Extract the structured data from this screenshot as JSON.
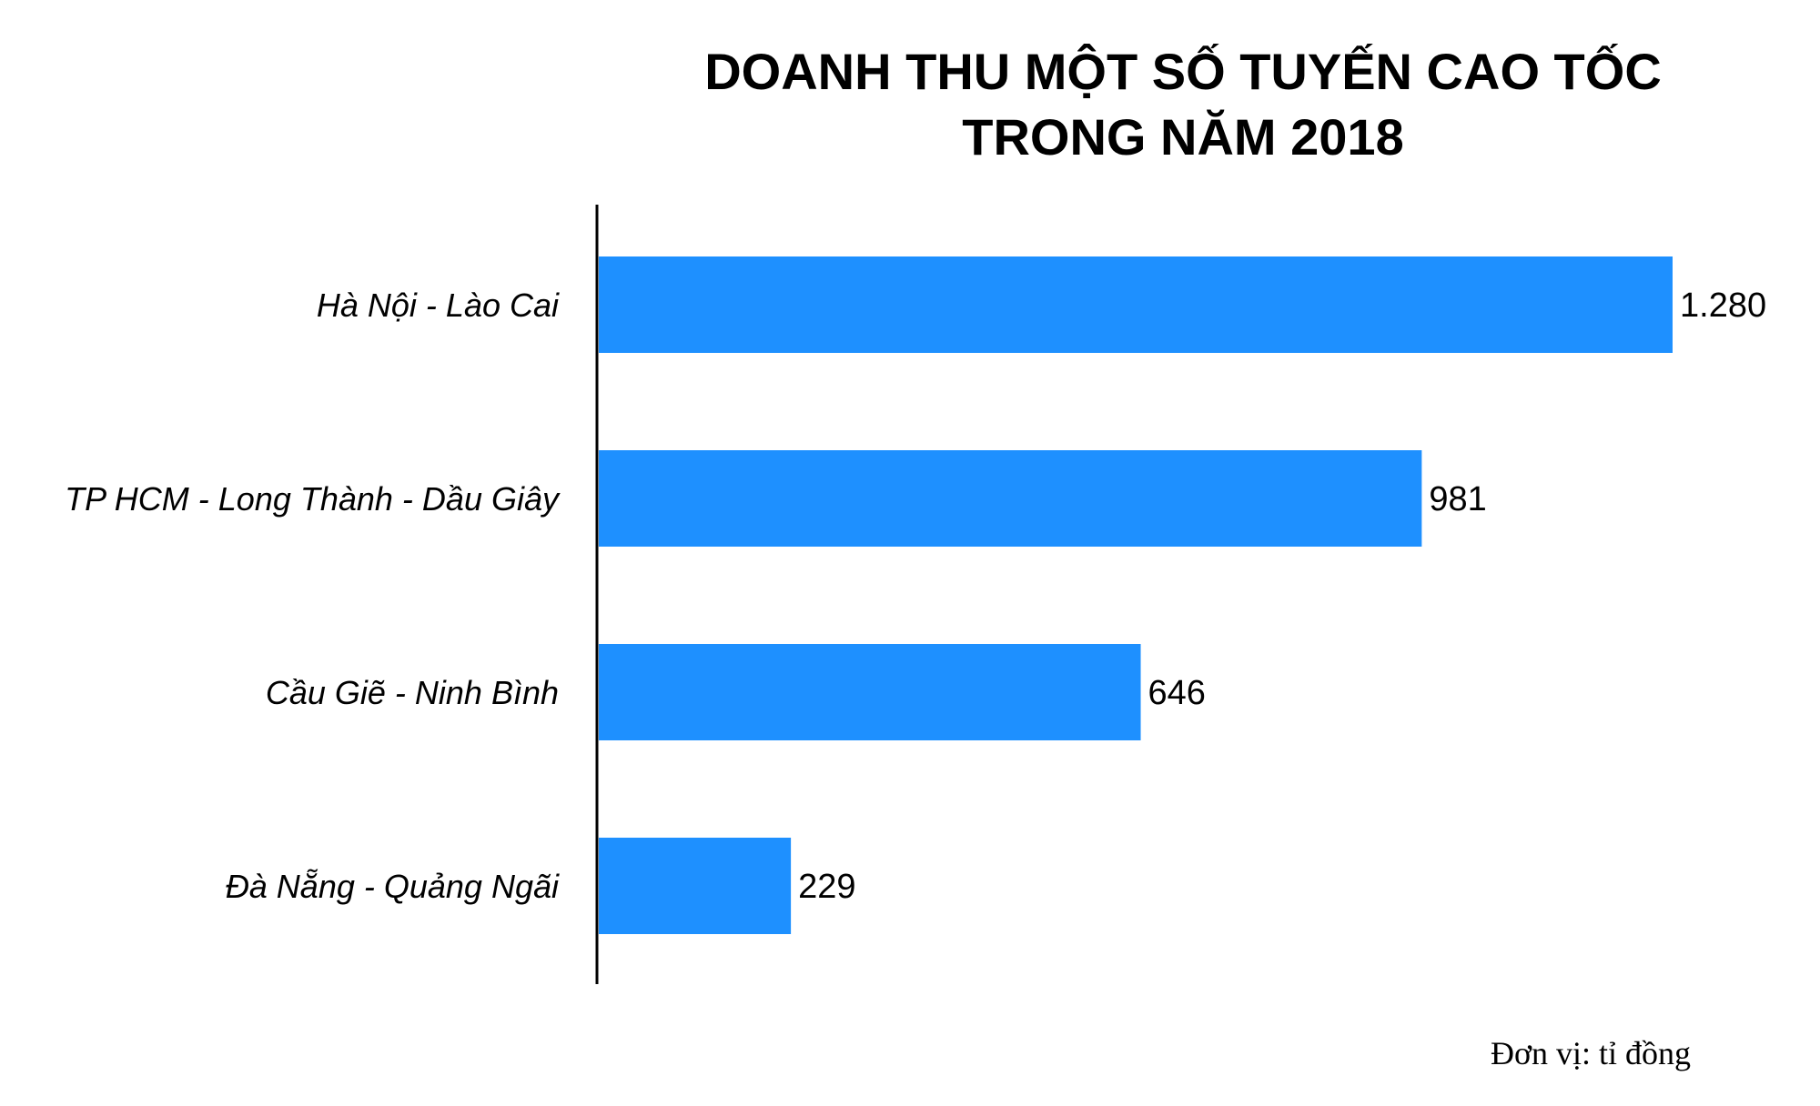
{
  "chart_data": {
    "type": "bar",
    "orientation": "horizontal",
    "title_lines": [
      "DOANH THU MỘT SỐ TUYẾN CAO TỐC",
      "TRONG NĂM 2018"
    ],
    "categories": [
      "Hà Nội - Lào Cai",
      "TP HCM - Long Thành - Dầu Giây",
      "Cầu Giẽ - Ninh Bình",
      "Đà Nẵng - Quảng Ngãi"
    ],
    "values": [
      1280,
      981,
      646,
      229
    ],
    "value_labels": [
      "1.280",
      "981",
      "646",
      "229"
    ],
    "unit_note": "Đơn vị: tỉ đồng",
    "xlim": [
      0,
      1280
    ],
    "grid": false,
    "legend": "none",
    "bar_color": "#1e90ff",
    "axis_color": "#000000"
  }
}
